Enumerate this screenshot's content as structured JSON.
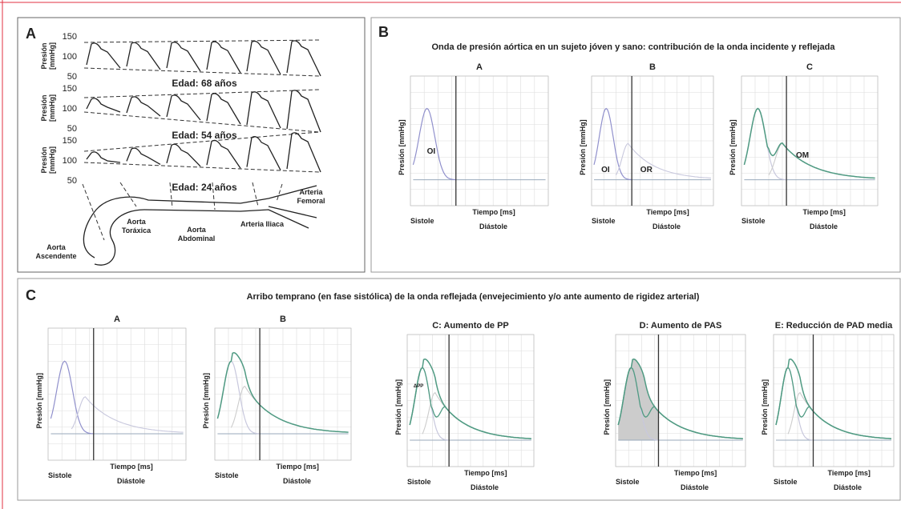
{
  "panel_a": {
    "label": "A",
    "y_axis_label": [
      "Presión",
      "[mmHg]"
    ],
    "rows": [
      {
        "ticks": [
          "150",
          "100",
          "50"
        ],
        "age": "Edad: 68 años"
      },
      {
        "ticks": [
          "150",
          "100",
          "50"
        ],
        "age": "Edad: 54 años"
      },
      {
        "ticks": [
          "150",
          "100",
          "50"
        ],
        "age": "Edad: 24 años"
      }
    ],
    "anatomy": [
      [
        "Arteria",
        "Femoral"
      ],
      [
        "Aorta",
        "Toráxica"
      ],
      [
        "Aorta",
        "Abdominal"
      ],
      [
        "Arteria Iliaca"
      ],
      [
        "Aorta",
        "Ascendente"
      ]
    ]
  },
  "panel_b": {
    "label": "B",
    "title": "Onda de presión aórtica en un sujeto jóven y sano: contribución de la onda incidente y reflejada",
    "y_axis_label": "Presión [mmHg]",
    "x_axis_label": "Tiempo [ms]",
    "systole": "Sistole",
    "diastole": "Diástole",
    "plots": [
      {
        "title": "A",
        "annotations": [
          "OI"
        ]
      },
      {
        "title": "B",
        "annotations": [
          "OI",
          "OR"
        ]
      },
      {
        "title": "C",
        "annotations": [
          "OM"
        ]
      }
    ]
  },
  "panel_c": {
    "label": "C",
    "title": "Arribo temprano (en fase sistólica) de la onda reflejada   (envejecimiento y/o ante aumento de rigidez arterial)",
    "y_axis_label": "Presión [mmHg]",
    "x_axis_label": "Tiempo [ms]",
    "systole": "Sistole",
    "diastole": "Diástole",
    "plots": [
      {
        "title": "A"
      },
      {
        "title": "B"
      },
      {
        "title": "C: Aumento de PP",
        "annotations": [
          "ΔPP"
        ]
      },
      {
        "title": "D: Aumento de PAS"
      },
      {
        "title": "E: Reducción de PAD media"
      }
    ]
  }
}
